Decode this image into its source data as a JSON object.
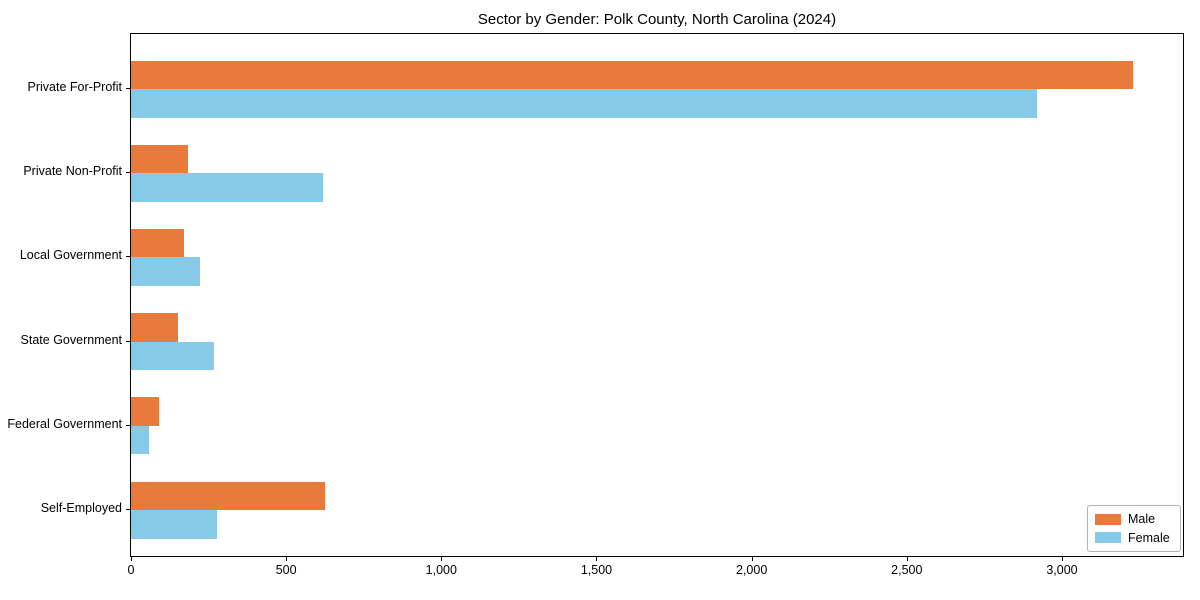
{
  "title": "Sector by Gender: Polk County, North Carolina (2024)",
  "chart_data": {
    "type": "bar",
    "orientation": "horizontal",
    "title": "Sector by Gender: Polk County, North Carolina (2024)",
    "categories": [
      "Private For-Profit",
      "Private Non-Profit",
      "Local Government",
      "State Government",
      "Federal Government",
      "Self-Employed"
    ],
    "series": [
      {
        "name": "Male",
        "color": "#e87a3c",
        "values": [
          3230,
          185,
          170,
          150,
          90,
          625
        ]
      },
      {
        "name": "Female",
        "color": "#86cae8",
        "values": [
          2920,
          620,
          222,
          268,
          58,
          278
        ]
      }
    ],
    "xlim": [
      0,
      3390
    ],
    "xticks": [
      0,
      500,
      1000,
      1500,
      2000,
      2500,
      3000
    ],
    "xtick_labels": [
      "0",
      "500",
      "1,000",
      "1,500",
      "2,000",
      "2,500",
      "3,000"
    ],
    "xlabel": "",
    "ylabel": "",
    "grid": false,
    "legend_position": "lower right"
  }
}
